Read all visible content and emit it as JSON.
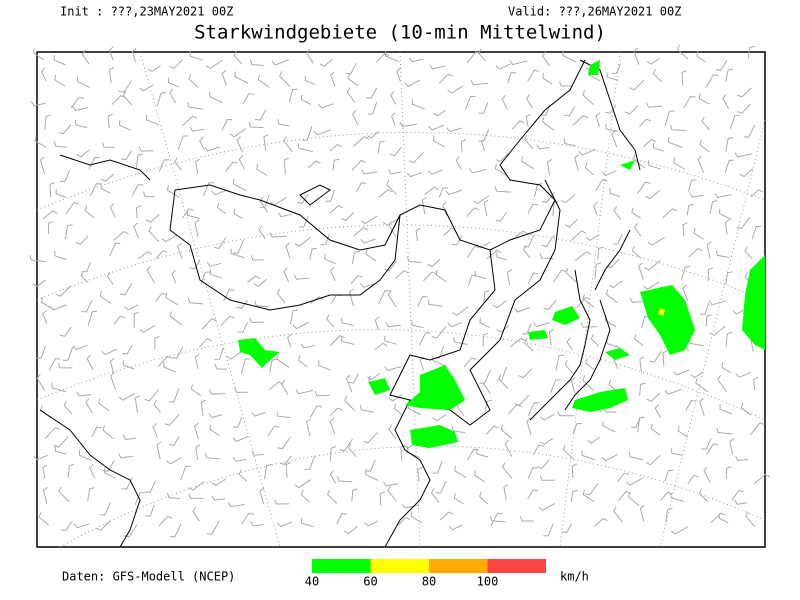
{
  "header": {
    "init": "Init : ???,23MAY2021 00Z",
    "valid": "Valid: ???,26MAY2021 00Z",
    "title": "Starkwindgebiete (10-min Mittelwind)"
  },
  "footer": {
    "source": "Daten: GFS-Modell (NCEP)",
    "legend": {
      "labels": [
        "40",
        "60",
        "80",
        "100"
      ],
      "unit": "km/h",
      "colors": [
        "#00ff00",
        "#ffff00",
        "#ffaa00",
        "#ff4444"
      ]
    }
  }
}
